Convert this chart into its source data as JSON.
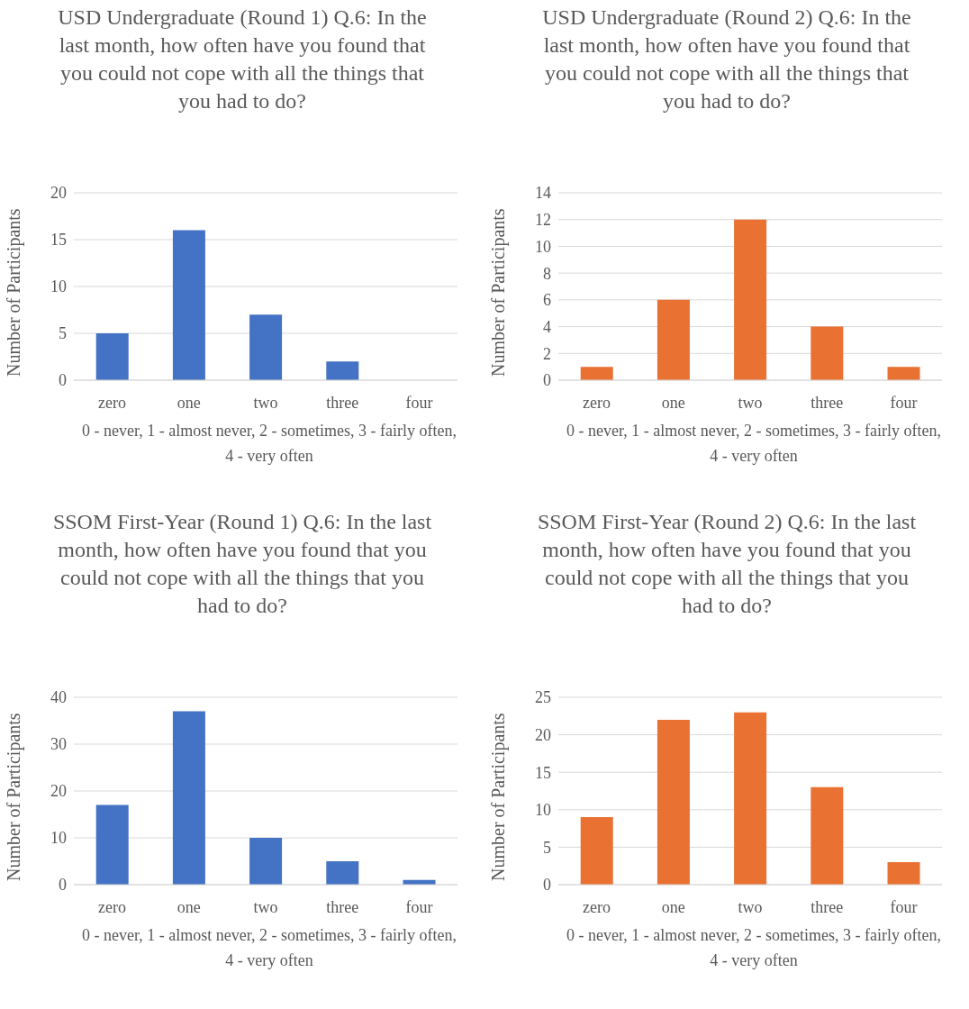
{
  "chart_data": [
    {
      "type": "bar",
      "title": "USD Undergraduate (Round 1) Q.6: In the last month, how often have you found that you could not cope with all the things that you had to do?",
      "xlabel": "0 - never, 1 - almost never, 2 - sometimes, 3 - fairly often, 4 - very often",
      "ylabel": "Number of Participants",
      "categories": [
        "zero",
        "one",
        "two",
        "three",
        "four"
      ],
      "values": [
        5,
        16,
        7,
        2,
        0
      ],
      "color": "#4472c4",
      "ylim": [
        0,
        20
      ],
      "yticks": [
        0,
        5,
        10,
        15,
        20
      ],
      "grid": "y"
    },
    {
      "type": "bar",
      "title": "USD Undergraduate (Round 2) Q.6: In the last month, how often have you found that you could not cope with all the things that you had to do?",
      "xlabel": "0 - never, 1 - almost never, 2 - sometimes, 3 - fairly often, 4 - very often",
      "ylabel": "Number of Participants",
      "categories": [
        "zero",
        "one",
        "two",
        "three",
        "four"
      ],
      "values": [
        1,
        6,
        12,
        4,
        1
      ],
      "color": "#e97132",
      "ylim": [
        0,
        14
      ],
      "yticks": [
        0,
        2,
        4,
        6,
        8,
        10,
        12,
        14
      ],
      "grid": "y"
    },
    {
      "type": "bar",
      "title": "SSOM First-Year (Round 1) Q.6: In the last month, how often have you found that you could not cope with all the things that you had to do?",
      "xlabel": "0 - never, 1 - almost never, 2 - sometimes, 3 - fairly often, 4 - very often",
      "ylabel": "Number of Participants",
      "categories": [
        "zero",
        "one",
        "two",
        "three",
        "four"
      ],
      "values": [
        17,
        37,
        10,
        5,
        1
      ],
      "color": "#4472c4",
      "ylim": [
        0,
        40
      ],
      "yticks": [
        0,
        10,
        20,
        30,
        40
      ],
      "grid": "y"
    },
    {
      "type": "bar",
      "title": "SSOM First-Year (Round 2) Q.6: In the last month, how often have you found that you could not cope with all the things that you had to do?",
      "xlabel": "0 - never, 1 - almost never, 2 - sometimes, 3 - fairly often, 4 - very often",
      "ylabel": "Number of Participants",
      "categories": [
        "zero",
        "one",
        "two",
        "three",
        "four"
      ],
      "values": [
        9,
        22,
        23,
        13,
        3
      ],
      "color": "#e97132",
      "ylim": [
        0,
        25
      ],
      "yticks": [
        0,
        5,
        10,
        15,
        20,
        25
      ],
      "grid": "y"
    }
  ]
}
